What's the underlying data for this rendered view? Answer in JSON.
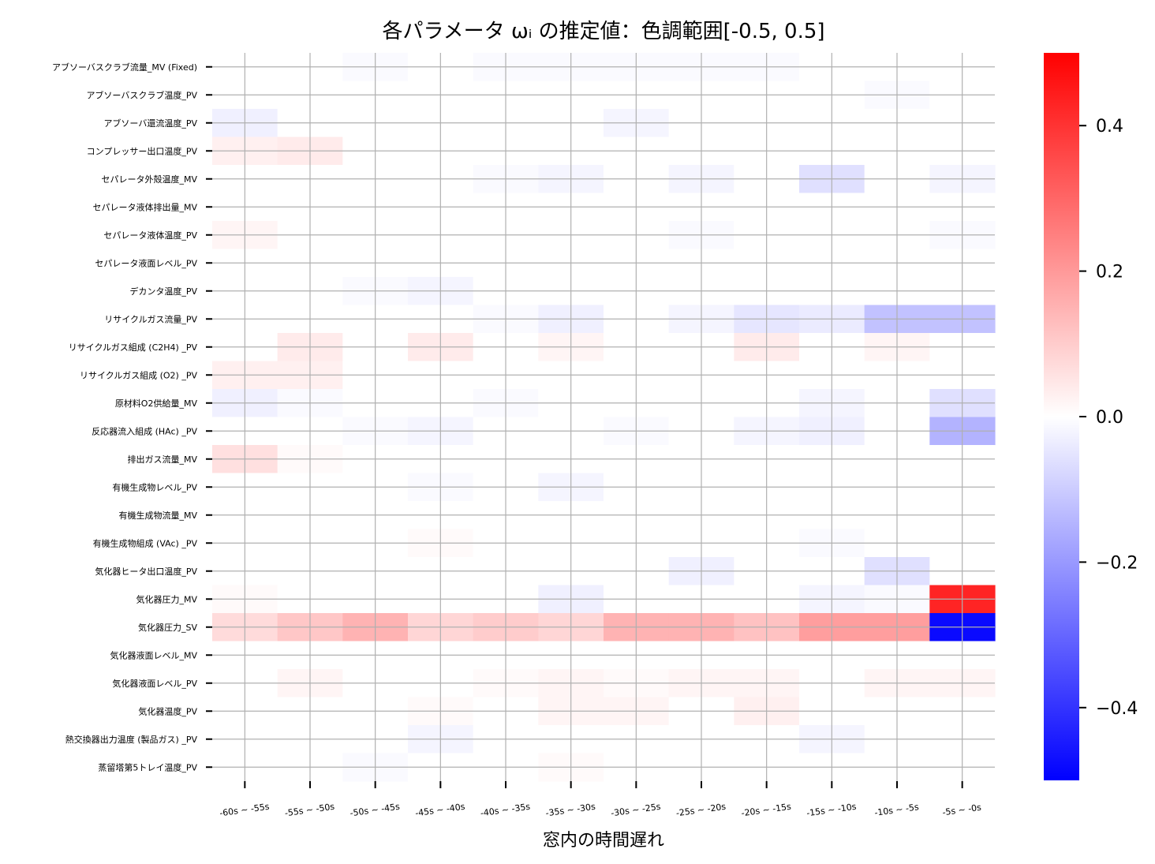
{
  "chart_data": {
    "type": "heatmap",
    "title": "各パラメータ ωᵢ の推定値：色調範囲[-0.5, 0.5]",
    "xlabel": "窓内の時間遅れ",
    "ylabel": "",
    "categories_x": [
      "-60s ~ -55s",
      "-55s ~ -50s",
      "-50s ~ -45s",
      "-45s ~ -40s",
      "-40s ~ -35s",
      "-35s ~ -30s",
      "-30s ~ -25s",
      "-25s ~ -20s",
      "-20s ~ -15s",
      "-15s ~ -10s",
      "-10s ~ -5s",
      "-5s ~ -0s"
    ],
    "categories_y": [
      "アブソーバスクラブ流量_MV (Fixed)",
      "アブソーバスクラブ温度_PV",
      "アブソーバ還流温度_PV",
      "コンプレッサー出口温度_PV",
      "セパレータ外殻温度_MV",
      "セパレータ液体排出量_MV",
      "セパレータ液体温度_PV",
      "セパレータ液面レベル_PV",
      "デカンタ温度_PV",
      "リサイクルガス流量_PV",
      "リサイクルガス組成 (C2H4) _PV",
      "リサイクルガス組成 (O2) _PV",
      "原材料O2供給量_MV",
      "反応器流入組成 (HAc) _PV",
      "排出ガス流量_MV",
      "有機生成物レベル_PV",
      "有機生成物流量_MV",
      "有機生成物組成 (VAc) _PV",
      "気化器ヒータ出口温度_PV",
      "気化器圧力_MV",
      "気化器圧力_SV",
      "気化器液面レベル_MV",
      "気化器液面レベル_PV",
      "気化器温度_PV",
      "熱交換器出力温度 (製品ガス) _PV",
      "蒸留塔第5トレイ温度_PV"
    ],
    "values": [
      [
        0,
        0,
        -0.01,
        0,
        -0.01,
        -0.01,
        -0.01,
        -0.01,
        -0.01,
        0,
        0,
        0
      ],
      [
        0,
        0,
        0,
        0,
        0,
        0,
        0,
        0,
        0,
        0,
        -0.01,
        0
      ],
      [
        -0.03,
        0,
        0,
        0,
        0,
        0,
        -0.02,
        0,
        0,
        0,
        0,
        0
      ],
      [
        0.03,
        0.04,
        0,
        0,
        0,
        0,
        0,
        0,
        0,
        0,
        0,
        0
      ],
      [
        0,
        0,
        0,
        0,
        -0.01,
        -0.02,
        0,
        -0.02,
        0,
        -0.06,
        0,
        -0.02
      ],
      [
        0,
        0,
        0,
        0,
        0,
        0,
        0,
        0,
        0,
        0,
        0,
        0
      ],
      [
        0.02,
        0,
        0,
        0,
        0,
        0,
        0,
        -0.01,
        0,
        0,
        0,
        -0.01
      ],
      [
        0,
        0,
        0,
        0,
        0,
        0,
        0,
        0,
        0,
        0,
        0,
        0
      ],
      [
        0,
        0,
        -0.01,
        -0.02,
        0,
        0,
        0,
        0,
        0,
        0,
        0,
        0
      ],
      [
        0,
        0,
        0,
        0,
        -0.01,
        -0.03,
        0,
        -0.02,
        -0.05,
        -0.04,
        -0.12,
        -0.12
      ],
      [
        0,
        0.04,
        0,
        0.04,
        0,
        0.02,
        0,
        0,
        0.04,
        0,
        0.02,
        0
      ],
      [
        0.03,
        0.03,
        0,
        0,
        0,
        0,
        0,
        0,
        0,
        0,
        0,
        0
      ],
      [
        -0.03,
        -0.01,
        0,
        0,
        -0.01,
        0,
        0,
        0,
        0,
        -0.02,
        0,
        -0.06
      ],
      [
        0,
        0,
        -0.01,
        -0.02,
        0,
        0,
        -0.01,
        0,
        -0.02,
        -0.03,
        0,
        -0.15
      ],
      [
        0.06,
        0.01,
        0,
        0,
        0,
        0,
        0,
        0,
        0,
        0,
        0,
        0
      ],
      [
        0,
        0,
        0,
        -0.01,
        0,
        -0.02,
        0,
        0,
        0,
        0,
        0,
        0
      ],
      [
        0,
        0,
        0,
        0,
        0,
        0,
        0,
        0,
        0,
        0,
        0,
        0
      ],
      [
        0,
        0,
        0,
        0.01,
        0,
        0,
        0,
        0,
        0,
        -0.01,
        0,
        0
      ],
      [
        0,
        0,
        0,
        0,
        0,
        0,
        0,
        -0.03,
        0,
        0,
        -0.06,
        0
      ],
      [
        0.01,
        0,
        0,
        0,
        0,
        -0.03,
        0,
        0,
        0,
        -0.02,
        -0.01,
        0.43
      ],
      [
        0.07,
        0.11,
        0.15,
        0.08,
        0.1,
        0.08,
        0.15,
        0.15,
        0.12,
        0.19,
        0.19,
        -0.48
      ],
      [
        0,
        0,
        0,
        0,
        0,
        0,
        0,
        0,
        0,
        0,
        0,
        0
      ],
      [
        0,
        0.02,
        0,
        0,
        0.01,
        0.02,
        0.01,
        0.02,
        0.02,
        0,
        0.02,
        0.02
      ],
      [
        0,
        0,
        0,
        0.01,
        0,
        0.02,
        0.02,
        0,
        0.03,
        0,
        0,
        0
      ],
      [
        0,
        0,
        0,
        -0.02,
        0,
        0,
        0,
        0,
        0,
        -0.02,
        0,
        0
      ],
      [
        0,
        0,
        -0.01,
        0,
        0,
        0.01,
        0,
        0,
        0,
        0,
        0,
        0
      ]
    ],
    "vmin": -0.5,
    "vmax": 0.5,
    "colormap": "bwr",
    "colors": {
      "low": "#0000ff",
      "mid": "#ffffff",
      "high": "#ff0000",
      "grid": "#b0b0b0"
    },
    "colorbar_ticks": [
      0.4,
      0.2,
      0.0,
      -0.2,
      -0.4
    ],
    "colorbar_tick_labels": [
      "0.4",
      "0.2",
      "0.0",
      "−0.2",
      "−0.4"
    ],
    "grid": true
  }
}
